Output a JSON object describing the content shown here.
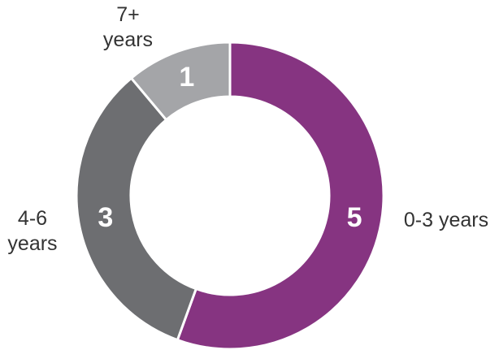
{
  "chart_data": {
    "type": "pie",
    "categories": [
      "0-3 years",
      "4-6 years",
      "7+ years"
    ],
    "values": [
      5,
      3,
      1
    ],
    "colors": [
      "#863481",
      "#6d6e71",
      "#a4a5a8"
    ]
  }
}
